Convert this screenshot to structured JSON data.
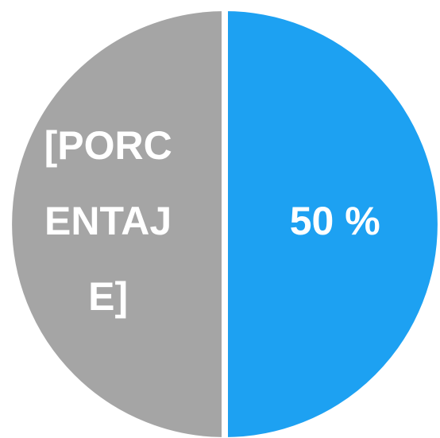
{
  "chart_data": {
    "type": "pie",
    "categories": [
      null,
      null
    ],
    "values": [
      50,
      50
    ],
    "value_labels": [
      "50 %",
      null
    ],
    "colors": [
      "#1da1f2",
      "#a5a5a5"
    ],
    "annotation": "[PORCENTAJE]",
    "start_angle": 90,
    "direction": "clockwise"
  }
}
